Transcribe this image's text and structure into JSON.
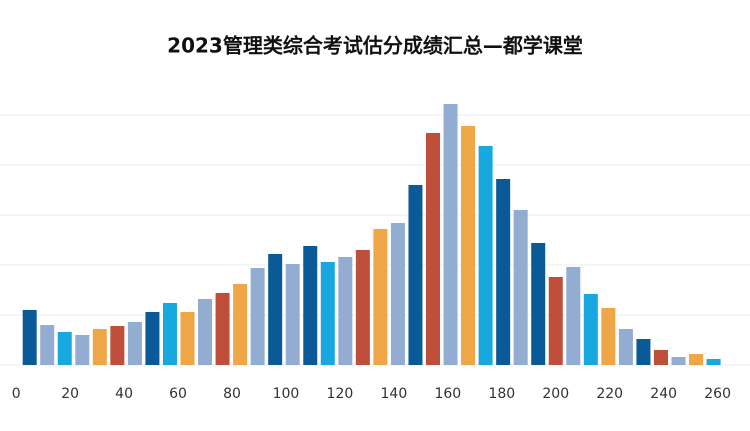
{
  "chart_data": {
    "type": "bar",
    "title": "2023管理类综合考试估分成绩汇总—都学课堂",
    "x": [
      5,
      11.5,
      18,
      24.5,
      31,
      37.5,
      44,
      50.5,
      57,
      63.5,
      70,
      76.5,
      83,
      89.5,
      96,
      102.5,
      109,
      115.5,
      122,
      128.5,
      135,
      141.5,
      148,
      154.5,
      161,
      167.5,
      174,
      180.5,
      187,
      193.5,
      200,
      206.5,
      213,
      219.5,
      226,
      232.5,
      239,
      245.5,
      252,
      258.5
    ],
    "values": [
      1.1,
      0.8,
      0.66,
      0.6,
      0.72,
      0.78,
      0.86,
      1.06,
      1.24,
      1.06,
      1.32,
      1.44,
      1.62,
      1.94,
      2.22,
      2.02,
      2.38,
      2.06,
      2.16,
      2.3,
      2.72,
      2.84,
      3.6,
      4.64,
      5.22,
      4.78,
      4.38,
      3.72,
      3.1,
      2.44,
      1.76,
      1.96,
      1.42,
      1.14,
      0.72,
      0.52,
      0.3,
      0.16,
      0.22,
      0.12
    ],
    "colors": [
      "#0b5a98",
      "#93acd2",
      "#17a8e0",
      "#93acd2",
      "#eea646",
      "#bf4f3a",
      "#93acd2",
      "#0b5a98",
      "#17a8e0",
      "#eea646",
      "#93acd2",
      "#bf4f3a",
      "#eea646",
      "#93acd2",
      "#0b5a98",
      "#93acd2",
      "#0b5a98",
      "#17a8e0",
      "#93acd2",
      "#bf4f3a",
      "#eea646",
      "#93acd2",
      "#0b5a98",
      "#bf4f3a",
      "#93acd2",
      "#eea646",
      "#17a8e0",
      "#0b5a98",
      "#93acd2",
      "#0b5a98",
      "#bf4f3a",
      "#93acd2",
      "#17a8e0",
      "#eea646",
      "#93acd2",
      "#0b5a98",
      "#bf4f3a",
      "#93acd2",
      "#eea646",
      "#17a8e0"
    ],
    "xlim": [
      -6,
      272
    ],
    "xticks": [
      0,
      20,
      40,
      60,
      80,
      100,
      120,
      140,
      160,
      180,
      200,
      220,
      240,
      260
    ],
    "ylim": [
      0,
      5.4
    ],
    "yticks": [
      0,
      1,
      2,
      3,
      4,
      5
    ],
    "grid": true
  }
}
